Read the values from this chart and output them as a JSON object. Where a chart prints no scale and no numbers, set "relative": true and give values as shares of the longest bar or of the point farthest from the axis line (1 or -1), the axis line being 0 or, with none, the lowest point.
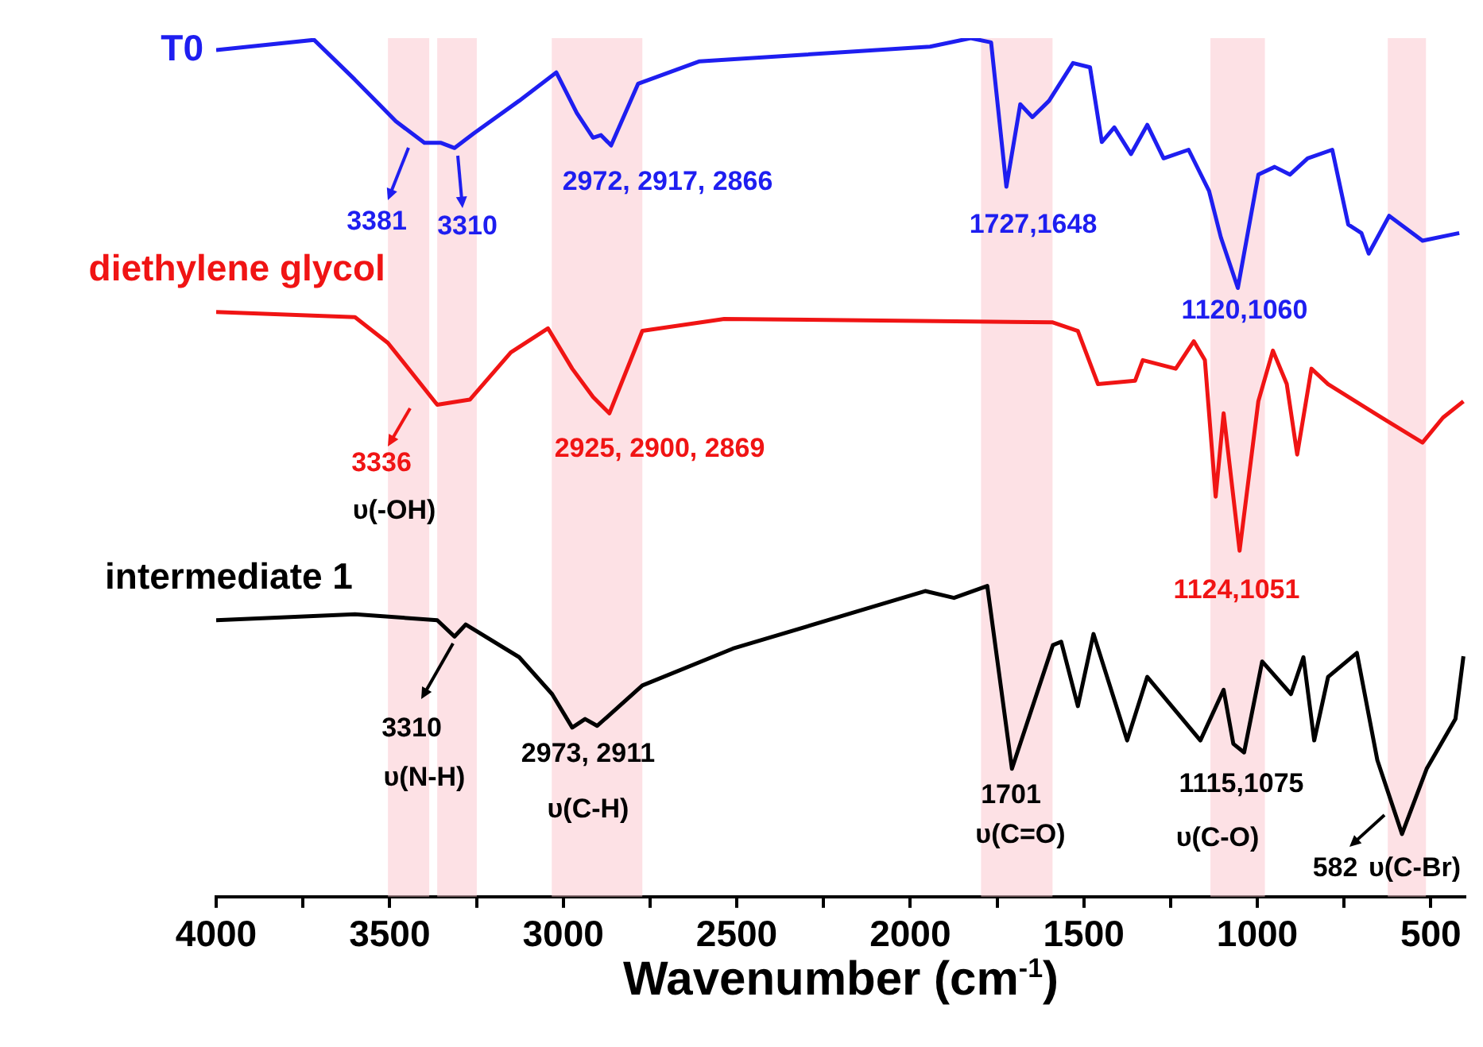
{
  "chart_data": {
    "type": "line",
    "relative": true,
    "xlabel": "Wavenumber (cm$^{-1}$)",
    "xlim": [
      4000,
      400
    ],
    "xticks": [
      4000,
      {
        "value": 3750,
        "label": null
      },
      3500,
      {
        "value": 3250,
        "label": null
      },
      3000,
      {
        "value": 2750,
        "label": null
      },
      2500,
      {
        "value": 2250,
        "label": null
      },
      2000,
      {
        "value": 1750,
        "label": null
      },
      1500,
      {
        "value": 1250,
        "label": null
      },
      1000,
      {
        "value": 750,
        "label": null
      },
      500
    ],
    "tick_labels": "x",
    "grid": false,
    "legend": false,
    "series": [
      {
        "name": "T0",
        "color": "#1e1ef0",
        "x": [
          4000,
          3718,
          3601,
          3482,
          3400,
          3352,
          3313,
          3258,
          3127,
          3020,
          2961,
          2914,
          2891,
          2862,
          2784,
          2607,
          1943,
          1826,
          1767,
          1723,
          1683,
          1648,
          1600,
          1531,
          1482,
          1448,
          1412,
          1364,
          1317,
          1270,
          1198,
          1139,
          1105,
          1056,
          997,
          950,
          906,
          855,
          784,
          738,
          700,
          679,
          620,
          524,
          418
        ],
        "values": [
          0.986,
          0.998,
          0.952,
          0.903,
          0.878,
          0.878,
          0.872,
          0.889,
          0.927,
          0.96,
          0.913,
          0.884,
          0.887,
          0.875,
          0.947,
          0.973,
          0.99,
          1.0,
          0.995,
          0.827,
          0.923,
          0.908,
          0.927,
          0.971,
          0.966,
          0.879,
          0.896,
          0.865,
          0.899,
          0.86,
          0.87,
          0.822,
          0.768,
          0.709,
          0.841,
          0.85,
          0.841,
          0.86,
          0.87,
          0.783,
          0.773,
          0.749,
          0.793,
          0.764,
          0.773
        ]
      },
      {
        "name": "diethylene glycol",
        "color": "#f01414",
        "x": [
          4000,
          3600,
          3505,
          3363,
          3269,
          3151,
          3044,
          2974,
          2914,
          2867,
          2772,
          2536,
          1591,
          1517,
          1459,
          1352,
          1330,
          1235,
          1183,
          1151,
          1120,
          1097,
          1051,
          997,
          955,
          915,
          885,
          844,
          796,
          642,
          524,
          465,
          406
        ],
        "values": [
          0.681,
          0.675,
          0.645,
          0.573,
          0.579,
          0.634,
          0.662,
          0.615,
          0.582,
          0.563,
          0.659,
          0.673,
          0.669,
          0.659,
          0.597,
          0.601,
          0.625,
          0.615,
          0.647,
          0.625,
          0.466,
          0.563,
          0.403,
          0.577,
          0.636,
          0.597,
          0.515,
          0.615,
          0.597,
          0.558,
          0.529,
          0.558,
          0.577
        ]
      },
      {
        "name": "intermediate 1",
        "color": "#000000",
        "x": [
          4000,
          3600,
          3363,
          3313,
          3281,
          3127,
          3032,
          2974,
          2937,
          2902,
          2772,
          2511,
          1957,
          1874,
          1778,
          1707,
          1589,
          1565,
          1517,
          1472,
          1375,
          1317,
          1164,
          1097,
          1069,
          1038,
          986,
          903,
          867,
          836,
          796,
          713,
          654,
          583,
          512,
          429,
          406
        ],
        "values": [
          0.322,
          0.329,
          0.322,
          0.303,
          0.317,
          0.279,
          0.236,
          0.197,
          0.207,
          0.199,
          0.246,
          0.289,
          0.356,
          0.348,
          0.362,
          0.149,
          0.293,
          0.297,
          0.222,
          0.306,
          0.182,
          0.256,
          0.182,
          0.241,
          0.178,
          0.168,
          0.274,
          0.236,
          0.279,
          0.182,
          0.256,
          0.284,
          0.159,
          0.073,
          0.149,
          0.207,
          0.28
        ]
      }
    ],
    "bands": [
      {
        "axis": "x",
        "from": 3505,
        "to": 3386,
        "color": "#fbc9d0"
      },
      {
        "axis": "x",
        "from": 3363,
        "to": 3249,
        "color": "#fbc9d0"
      },
      {
        "axis": "x",
        "from": 3033,
        "to": 2772,
        "color": "#fbc9d0"
      },
      {
        "axis": "x",
        "from": 1796,
        "to": 1590,
        "color": "#fbc9d0"
      },
      {
        "axis": "x",
        "from": 1135,
        "to": 978,
        "color": "#fbc9d0"
      },
      {
        "axis": "x",
        "from": 624,
        "to": 514,
        "color": "#fbc9d0"
      }
    ],
    "annotations": [
      "3381",
      "3310",
      "2972, 2917, 2866",
      "1727,1648",
      "1120,1060",
      "3336",
      "υ(-OH)",
      "2925, 2900, 2869",
      "1124,1051",
      "3310",
      "υ(N-H)",
      "2973, 2911",
      "υ(C-H)",
      "1701",
      "υ(C=O)",
      "1115,1075",
      "υ(C-O)",
      "582",
      "υ(C-Br)"
    ]
  }
}
